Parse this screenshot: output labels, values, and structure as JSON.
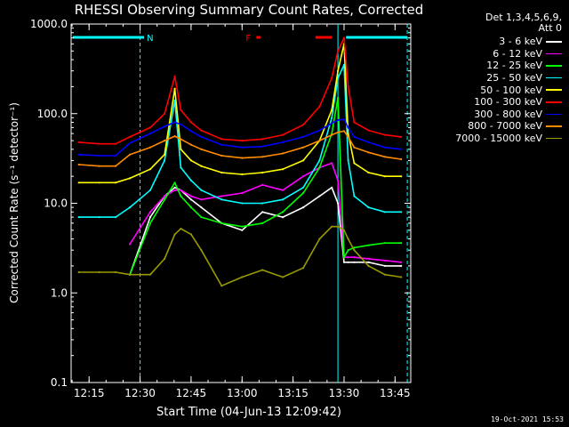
{
  "chart_data": {
    "type": "line",
    "title": "RHESSI Observing Summary Count Rates, Corrected",
    "xlabel": "Start Time (04-Jun-13 12:09:42)",
    "ylabel": "Corrected Count Rate (s⁻¹ detector⁻¹)",
    "ylim": [
      0.1,
      1000
    ],
    "yscale": "log",
    "xlim": [
      12.162,
      13.827
    ],
    "x_ticks": [
      {
        "value": 12.25,
        "label": "12:15"
      },
      {
        "value": 12.5,
        "label": "12:30"
      },
      {
        "value": 12.75,
        "label": "12:45"
      },
      {
        "value": 13.0,
        "label": "13:00"
      },
      {
        "value": 13.25,
        "label": "13:15"
      },
      {
        "value": 13.5,
        "label": "13:30"
      },
      {
        "value": 13.75,
        "label": "13:45"
      }
    ],
    "y_ticks": [
      {
        "value": 0.1,
        "label": "0.1"
      },
      {
        "value": 1,
        "label": "1.0"
      },
      {
        "value": 10,
        "label": "10.0"
      },
      {
        "value": 100,
        "label": "100.0"
      },
      {
        "value": 1000,
        "label": "1000.0"
      }
    ],
    "x": [
      12.2,
      12.3,
      12.38,
      12.45,
      12.55,
      12.62,
      12.67,
      12.7,
      12.75,
      12.8,
      12.9,
      13.0,
      13.1,
      13.2,
      13.3,
      13.38,
      13.44,
      13.47,
      13.5,
      13.52,
      13.55,
      13.62,
      13.7,
      13.78
    ],
    "series": [
      {
        "name": "3 - 6 keV",
        "color": "#ffffff",
        "values": [
          null,
          null,
          null,
          1.6,
          7,
          12,
          15,
          14,
          11,
          9,
          6,
          5,
          8,
          7,
          9,
          12,
          15,
          10,
          2.2,
          2.2,
          2.2,
          2.2,
          2.0,
          2.0
        ]
      },
      {
        "name": "6 - 12 keV",
        "color": "#ff00ff",
        "values": [
          null,
          null,
          null,
          3.5,
          8,
          12,
          14,
          14,
          12,
          11,
          12,
          13,
          16,
          14,
          20,
          25,
          28,
          18,
          2.5,
          2.5,
          2.5,
          2.4,
          2.3,
          2.2
        ]
      },
      {
        "name": "12 - 25 keV",
        "color": "#00ff00",
        "values": [
          null,
          null,
          null,
          1.6,
          6,
          11,
          17,
          12,
          9,
          7,
          6,
          5.5,
          6,
          8,
          13,
          25,
          60,
          150,
          2.5,
          3,
          3.2,
          3.4,
          3.6,
          3.6
        ]
      },
      {
        "name": "25 - 50 keV",
        "color": "#00ffff",
        "values": [
          7,
          7,
          7,
          9,
          14,
          30,
          140,
          25,
          18,
          14,
          11,
          10,
          10,
          11,
          15,
          30,
          90,
          250,
          350,
          30,
          12,
          9,
          8,
          8
        ]
      },
      {
        "name": "50 - 100 keV",
        "color": "#ffff00",
        "values": [
          17,
          17,
          17,
          19,
          24,
          35,
          190,
          40,
          30,
          26,
          22,
          21,
          22,
          24,
          30,
          50,
          110,
          300,
          600,
          60,
          28,
          22,
          20,
          20
        ]
      },
      {
        "name": "100 - 300 keV",
        "color": "#ff0000",
        "values": [
          48,
          46,
          46,
          55,
          70,
          100,
          260,
          110,
          80,
          65,
          52,
          50,
          52,
          58,
          75,
          120,
          250,
          500,
          700,
          200,
          80,
          65,
          58,
          55
        ]
      },
      {
        "name": "300 - 800 keV",
        "color": "#0000ff",
        "values": [
          35,
          34,
          34,
          47,
          60,
          72,
          80,
          76,
          64,
          55,
          45,
          42,
          43,
          48,
          55,
          65,
          78,
          85,
          86,
          70,
          55,
          48,
          42,
          40
        ]
      },
      {
        "name": "800 - 7000 keV",
        "color": "#ff8c00",
        "values": [
          27,
          26,
          26,
          35,
          42,
          50,
          56,
          52,
          45,
          40,
          34,
          32,
          33,
          36,
          42,
          50,
          58,
          62,
          64,
          55,
          42,
          37,
          33,
          31
        ]
      },
      {
        "name": "7000 - 15000 keV",
        "color": "#999900",
        "values": [
          1.7,
          1.7,
          1.7,
          1.6,
          1.6,
          2.4,
          4.5,
          5.2,
          4.5,
          3,
          1.2,
          1.5,
          1.8,
          1.5,
          1.9,
          4,
          5.5,
          5.5,
          5,
          4,
          3,
          2,
          1.6,
          1.5
        ]
      }
    ],
    "detector_label": "Det 1,3,4,5,6,9,",
    "attenuator_label": "Att 0",
    "flag_labels": [
      "N",
      "F"
    ],
    "flag_bars": [
      {
        "label": "N",
        "color": "#00ffff",
        "start": 12.17,
        "end": 12.52
      },
      {
        "label": "F",
        "color": "#ff0000",
        "start": 13.07,
        "end": 13.09
      },
      {
        "label": "",
        "color": "#ff0000",
        "start": 13.36,
        "end": 13.44
      },
      {
        "label": "",
        "color": "#00ffff",
        "start": 13.51,
        "end": 13.81
      }
    ],
    "vertical_lines": [
      {
        "x": 12.5,
        "style": "dashed",
        "color": "#00ffff"
      },
      {
        "x": 13.47,
        "style": "solid",
        "color": "#00ffff"
      },
      {
        "x": 13.81,
        "style": "dashed",
        "color": "#00ffff"
      }
    ],
    "timestamp": "19-Oct-2021 15:53"
  }
}
